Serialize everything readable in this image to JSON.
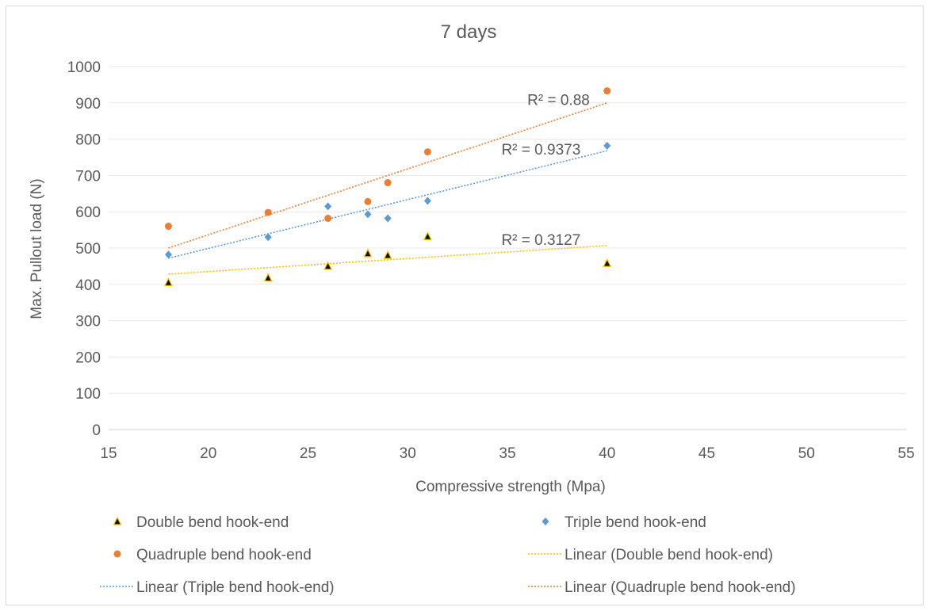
{
  "chart_data": {
    "type": "scatter",
    "title": "7 days",
    "xlabel": "Compressive strength (Mpa)",
    "ylabel": "Max. Pullout load (N)",
    "xlim": [
      15,
      55
    ],
    "ylim": [
      0,
      1000
    ],
    "x_ticks": [
      15,
      20,
      25,
      30,
      35,
      40,
      45,
      50,
      55
    ],
    "y_ticks": [
      0,
      100,
      200,
      300,
      400,
      500,
      600,
      700,
      800,
      900,
      1000
    ],
    "grid": "horizontal",
    "legend_position": "bottom",
    "series": [
      {
        "name": "Double bend hook-end",
        "marker": "triangle",
        "color": "#111111",
        "fill": "#FFC000",
        "x": [
          18,
          23,
          26,
          28,
          29,
          31,
          40
        ],
        "y": [
          405,
          418,
          450,
          485,
          480,
          532,
          458
        ]
      },
      {
        "name": "Triple bend hook-end",
        "marker": "diamond",
        "color": "#5B9BD5",
        "x": [
          18,
          23,
          26,
          28,
          29,
          31,
          40
        ],
        "y": [
          482,
          530,
          615,
          593,
          582,
          630,
          782
        ]
      },
      {
        "name": "Quadruple bend hook-end",
        "marker": "circle",
        "color": "#ED7D31",
        "x": [
          18,
          23,
          26,
          28,
          29,
          31,
          40
        ],
        "y": [
          560,
          598,
          582,
          628,
          680,
          765,
          933
        ]
      }
    ],
    "trendlines": [
      {
        "name": "Linear (Double bend hook-end)",
        "color": "#FFC000",
        "x": [
          18,
          40
        ],
        "y": [
          428,
          507
        ],
        "r2_label": "R² = 0.3127",
        "r2_at": [
          34.7,
          509
        ]
      },
      {
        "name": "Linear (Triple bend hook-end)",
        "color": "#5B9BD5",
        "x": [
          18,
          40
        ],
        "y": [
          472,
          768
        ],
        "r2_label": "R² = 0.9373",
        "r2_at": [
          34.7,
          758
        ]
      },
      {
        "name": "Linear (Quadruple bend hook-end)",
        "color": "#ED7D31",
        "x": [
          18,
          40
        ],
        "y": [
          500,
          900
        ],
        "r2_label": "R² = 0.88",
        "r2_at": [
          36.0,
          894
        ]
      }
    ]
  }
}
